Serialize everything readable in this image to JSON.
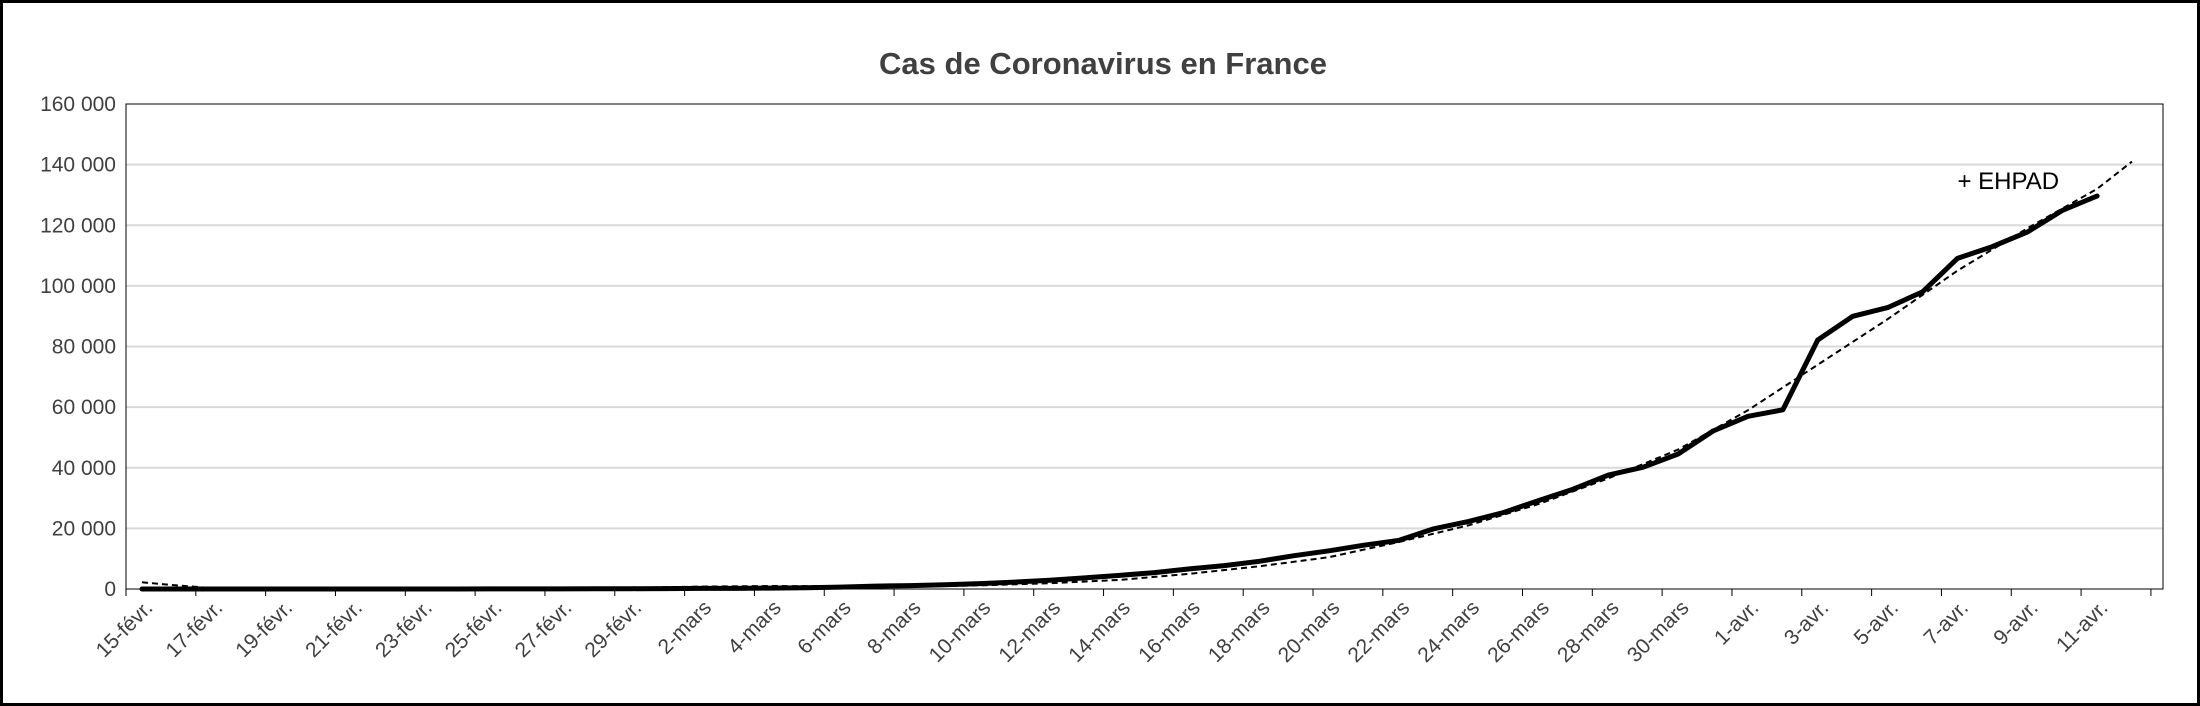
{
  "chart_data": {
    "type": "line",
    "title": "Cas de Coronavirus en France",
    "xlabel": "",
    "ylabel": "",
    "ylim": [
      0,
      160000
    ],
    "yticks": [
      0,
      20000,
      40000,
      60000,
      80000,
      100000,
      120000,
      140000,
      160000
    ],
    "ytick_labels": [
      "0",
      "20 000",
      "40 000",
      "60 000",
      "80 000",
      "100 000",
      "120 000",
      "140 000",
      "160 000"
    ],
    "xlim": [
      "2020-02-15",
      "2020-04-12"
    ],
    "xtick_labels": [
      "15-févr.",
      "17-févr.",
      "19-févr.",
      "21-févr.",
      "23-févr.",
      "25-févr.",
      "27-févr.",
      "29-févr.",
      "2-mars",
      "4-mars",
      "6-mars",
      "8-mars",
      "10-mars",
      "12-mars",
      "14-mars",
      "16-mars",
      "18-mars",
      "20-mars",
      "22-mars",
      "24-mars",
      "26-mars",
      "28-mars",
      "30-mars",
      "1-avr.",
      "3-avr.",
      "5-avr.",
      "7-avr.",
      "9-avr.",
      "11-avr."
    ],
    "grid": true,
    "legend": "none",
    "annotations": [
      {
        "text": "+ EHPAD",
        "x": "2020-04-07",
        "y": 132000
      }
    ],
    "series": [
      {
        "style": "solid",
        "color": "#000000",
        "x": [
          "2020-02-15",
          "2020-02-16",
          "2020-02-17",
          "2020-02-18",
          "2020-02-19",
          "2020-02-20",
          "2020-02-21",
          "2020-02-22",
          "2020-02-23",
          "2020-02-24",
          "2020-02-25",
          "2020-02-26",
          "2020-02-27",
          "2020-02-28",
          "2020-02-29",
          "2020-03-01",
          "2020-03-02",
          "2020-03-03",
          "2020-03-04",
          "2020-03-05",
          "2020-03-06",
          "2020-03-07",
          "2020-03-08",
          "2020-03-09",
          "2020-03-10",
          "2020-03-11",
          "2020-03-12",
          "2020-03-13",
          "2020-03-14",
          "2020-03-15",
          "2020-03-16",
          "2020-03-17",
          "2020-03-18",
          "2020-03-19",
          "2020-03-20",
          "2020-03-21",
          "2020-03-22",
          "2020-03-23",
          "2020-03-24",
          "2020-03-25",
          "2020-03-26",
          "2020-03-27",
          "2020-03-28",
          "2020-03-29",
          "2020-03-30",
          "2020-03-31",
          "2020-04-01",
          "2020-04-02",
          "2020-04-03",
          "2020-04-04",
          "2020-04-05",
          "2020-04-06",
          "2020-04-07",
          "2020-04-08",
          "2020-04-09",
          "2020-04-10",
          "2020-04-11"
        ],
        "values": [
          12,
          12,
          12,
          12,
          12,
          12,
          12,
          12,
          12,
          14,
          18,
          18,
          38,
          57,
          100,
          130,
          191,
          212,
          285,
          423,
          613,
          949,
          1126,
          1412,
          1784,
          2281,
          2876,
          3661,
          4499,
          5423,
          6633,
          7730,
          9134,
          10995,
          12612,
          14459,
          16018,
          19856,
          22302,
          25233,
          29155,
          32964,
          37575,
          40174,
          44550,
          52128,
          56989,
          59105,
          82165,
          89953,
          92839,
          98010,
          109069,
          112950,
          117749,
          124869,
          129654
        ]
      },
      {
        "style": "dashed",
        "color": "#000000",
        "x": [
          "2020-02-15",
          "2020-02-16",
          "2020-02-17",
          "2020-02-19",
          "2020-02-21",
          "2020-02-23",
          "2020-02-25",
          "2020-02-27",
          "2020-02-29",
          "2020-03-02",
          "2020-03-04",
          "2020-03-06",
          "2020-03-08",
          "2020-03-10",
          "2020-03-12",
          "2020-03-14",
          "2020-03-16",
          "2020-03-18",
          "2020-03-20",
          "2020-03-22",
          "2020-03-24",
          "2020-03-26",
          "2020-03-28",
          "2020-03-30",
          "2020-04-01",
          "2020-04-03",
          "2020-04-05",
          "2020-04-07",
          "2020-04-09",
          "2020-04-11",
          "2020-04-12"
        ],
        "values": [
          2200,
          1200,
          300,
          0,
          0,
          0,
          0,
          0,
          400,
          800,
          1000,
          900,
          800,
          1200,
          1900,
          3000,
          5000,
          7500,
          10500,
          15500,
          21000,
          28000,
          36500,
          46000,
          59000,
          74000,
          89000,
          105000,
          119000,
          132000,
          141000
        ]
      }
    ]
  }
}
